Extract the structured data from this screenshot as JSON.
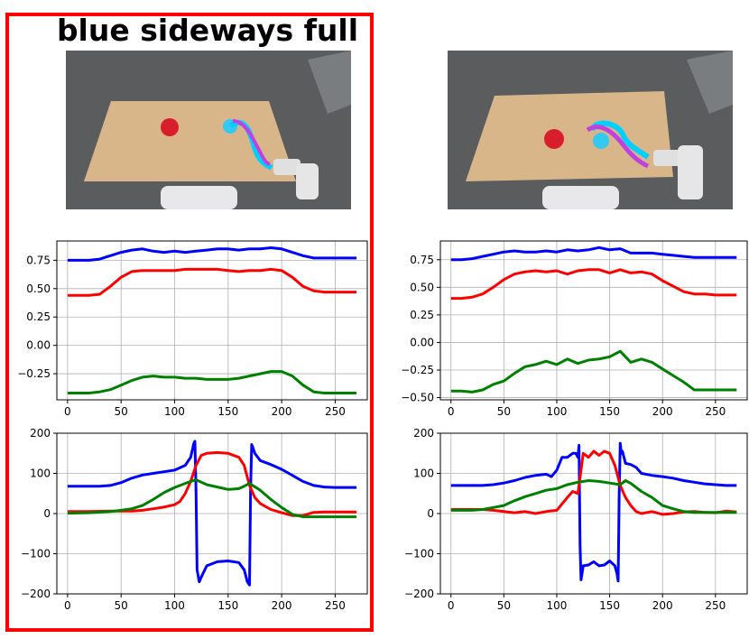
{
  "panel_title": "blue sideways full",
  "colors": {
    "frame": "#ff0000",
    "series_blue": "#0000ff",
    "series_red": "#ff0000",
    "series_green": "#008000",
    "grid": "#b0b0b0",
    "table": "#d9b58a",
    "floor": "#5a5c5e"
  },
  "photos": [
    {
      "name": "left",
      "description_icon": "robot-table-scene",
      "trace_color": "#00d0ff",
      "trace2_color": "#c040e0"
    },
    {
      "name": "right",
      "description_icon": "robot-table-scene",
      "trace_color": "#00d0ff",
      "trace2_color": "#c040e0"
    }
  ],
  "chart_data": [
    {
      "id": "top-left",
      "type": "line",
      "x": [
        0,
        10,
        20,
        30,
        40,
        50,
        60,
        70,
        80,
        90,
        100,
        110,
        120,
        130,
        140,
        150,
        160,
        170,
        180,
        190,
        200,
        210,
        220,
        230,
        240,
        250,
        260,
        270
      ],
      "xlim": [
        -10,
        280
      ],
      "ylim": [
        -0.48,
        0.92
      ],
      "xticks": [
        0,
        50,
        100,
        150,
        200,
        250
      ],
      "yticks": [
        -0.25,
        0,
        0.25,
        0.5,
        0.75
      ],
      "ytick_labels": [
        "−0.25",
        "0.00",
        "0.25",
        "0.50",
        "0.75"
      ],
      "series": [
        {
          "color": "#0000ff",
          "values": [
            0.75,
            0.75,
            0.75,
            0.76,
            0.79,
            0.82,
            0.84,
            0.85,
            0.83,
            0.82,
            0.83,
            0.82,
            0.83,
            0.84,
            0.85,
            0.85,
            0.84,
            0.85,
            0.85,
            0.86,
            0.85,
            0.82,
            0.79,
            0.77,
            0.77,
            0.77,
            0.77,
            0.77
          ]
        },
        {
          "color": "#ff0000",
          "values": [
            0.44,
            0.44,
            0.44,
            0.45,
            0.52,
            0.6,
            0.65,
            0.66,
            0.66,
            0.66,
            0.66,
            0.67,
            0.67,
            0.67,
            0.67,
            0.66,
            0.65,
            0.66,
            0.66,
            0.67,
            0.66,
            0.6,
            0.52,
            0.48,
            0.47,
            0.47,
            0.47,
            0.47
          ]
        },
        {
          "color": "#008000",
          "values": [
            -0.42,
            -0.42,
            -0.42,
            -0.41,
            -0.39,
            -0.35,
            -0.31,
            -0.28,
            -0.27,
            -0.28,
            -0.28,
            -0.29,
            -0.29,
            -0.3,
            -0.3,
            -0.3,
            -0.29,
            -0.27,
            -0.25,
            -0.23,
            -0.23,
            -0.27,
            -0.35,
            -0.41,
            -0.42,
            -0.42,
            -0.42,
            -0.42
          ]
        }
      ]
    },
    {
      "id": "top-right",
      "type": "line",
      "x": [
        0,
        10,
        20,
        30,
        40,
        50,
        60,
        70,
        80,
        90,
        100,
        110,
        120,
        130,
        140,
        150,
        160,
        170,
        180,
        190,
        200,
        210,
        220,
        230,
        240,
        250,
        260,
        270
      ],
      "xlim": [
        -10,
        280
      ],
      "ylim": [
        -0.52,
        0.92
      ],
      "xticks": [
        0,
        50,
        100,
        150,
        200,
        250
      ],
      "yticks": [
        -0.5,
        -0.25,
        0,
        0.25,
        0.5,
        0.75
      ],
      "ytick_labels": [
        "−0.50",
        "−0.25",
        "0.00",
        "0.25",
        "0.50",
        "0.75"
      ],
      "series": [
        {
          "color": "#0000ff",
          "values": [
            0.75,
            0.75,
            0.76,
            0.78,
            0.8,
            0.82,
            0.83,
            0.82,
            0.82,
            0.83,
            0.82,
            0.84,
            0.83,
            0.84,
            0.86,
            0.84,
            0.85,
            0.81,
            0.81,
            0.81,
            0.8,
            0.79,
            0.78,
            0.77,
            0.77,
            0.77,
            0.77,
            0.77
          ]
        },
        {
          "color": "#ff0000",
          "values": [
            0.4,
            0.4,
            0.41,
            0.44,
            0.5,
            0.57,
            0.62,
            0.64,
            0.65,
            0.64,
            0.65,
            0.62,
            0.65,
            0.66,
            0.66,
            0.63,
            0.66,
            0.63,
            0.64,
            0.62,
            0.56,
            0.51,
            0.46,
            0.44,
            0.44,
            0.43,
            0.43,
            0.43
          ]
        },
        {
          "color": "#008000",
          "values": [
            -0.44,
            -0.44,
            -0.45,
            -0.43,
            -0.38,
            -0.35,
            -0.28,
            -0.22,
            -0.2,
            -0.17,
            -0.2,
            -0.15,
            -0.19,
            -0.16,
            -0.15,
            -0.13,
            -0.08,
            -0.18,
            -0.15,
            -0.18,
            -0.24,
            -0.3,
            -0.36,
            -0.43,
            -0.43,
            -0.43,
            -0.43,
            -0.43
          ]
        }
      ]
    },
    {
      "id": "bottom-left",
      "type": "line",
      "xlim": [
        -10,
        280
      ],
      "ylim": [
        -200,
        200
      ],
      "xticks": [
        0,
        50,
        100,
        150,
        200,
        250
      ],
      "yticks": [
        -200,
        -100,
        0,
        100,
        200
      ],
      "ytick_labels": [
        "−200",
        "−100",
        "0",
        "100",
        "200"
      ],
      "series": [
        {
          "color": "#0000ff",
          "x": [
            0,
            20,
            30,
            40,
            50,
            60,
            70,
            80,
            90,
            100,
            110,
            115,
            118,
            119,
            120,
            121,
            123,
            125,
            130,
            140,
            150,
            160,
            165,
            168,
            170,
            171,
            172,
            173,
            175,
            180,
            190,
            200,
            210,
            220,
            230,
            240,
            250,
            260,
            270
          ],
          "values": [
            68,
            68,
            68,
            70,
            77,
            88,
            96,
            100,
            104,
            108,
            120,
            140,
            175,
            180,
            60,
            -140,
            -170,
            -158,
            -130,
            -120,
            -118,
            -122,
            -140,
            -170,
            -178,
            60,
            172,
            165,
            150,
            132,
            122,
            110,
            95,
            80,
            70,
            66,
            65,
            65,
            65
          ]
        },
        {
          "color": "#ff0000",
          "x": [
            0,
            20,
            40,
            60,
            70,
            80,
            90,
            100,
            105,
            110,
            115,
            120,
            125,
            130,
            140,
            150,
            160,
            165,
            170,
            175,
            180,
            190,
            200,
            210,
            220,
            230,
            240,
            250,
            270
          ],
          "values": [
            5,
            5,
            6,
            6,
            8,
            12,
            16,
            22,
            30,
            50,
            80,
            120,
            145,
            150,
            152,
            150,
            140,
            120,
            70,
            40,
            25,
            10,
            2,
            -5,
            -5,
            3,
            4,
            4,
            4
          ]
        },
        {
          "color": "#008000",
          "x": [
            0,
            20,
            40,
            50,
            60,
            70,
            80,
            90,
            100,
            110,
            115,
            120,
            125,
            130,
            140,
            150,
            160,
            165,
            170,
            180,
            190,
            200,
            210,
            220,
            240,
            270
          ],
          "values": [
            1,
            2,
            5,
            8,
            12,
            20,
            35,
            52,
            65,
            75,
            80,
            84,
            78,
            72,
            66,
            60,
            62,
            68,
            75,
            58,
            35,
            15,
            -2,
            -8,
            -8,
            -8
          ]
        }
      ]
    },
    {
      "id": "bottom-right",
      "type": "line",
      "xlim": [
        -10,
        280
      ],
      "ylim": [
        -200,
        200
      ],
      "xticks": [
        0,
        50,
        100,
        150,
        200,
        250
      ],
      "yticks": [
        -200,
        -100,
        0,
        100,
        200
      ],
      "ytick_labels": [
        "−200",
        "−100",
        "0",
        "100",
        "200"
      ],
      "series": [
        {
          "color": "#0000ff",
          "x": [
            0,
            20,
            30,
            40,
            50,
            60,
            70,
            80,
            90,
            95,
            100,
            105,
            110,
            115,
            118,
            120,
            121,
            122,
            123,
            125,
            130,
            135,
            140,
            145,
            150,
            155,
            157,
            158,
            159,
            160,
            161,
            162,
            165,
            170,
            175,
            180,
            190,
            200,
            210,
            220,
            230,
            240,
            250,
            260,
            270
          ],
          "values": [
            70,
            70,
            70,
            72,
            76,
            82,
            90,
            95,
            98,
            92,
            108,
            140,
            140,
            150,
            150,
            140,
            170,
            -80,
            -165,
            -130,
            -128,
            -120,
            -130,
            -128,
            -118,
            -130,
            -150,
            -168,
            40,
            175,
            150,
            155,
            125,
            122,
            115,
            100,
            95,
            92,
            88,
            82,
            78,
            74,
            72,
            70,
            70
          ]
        },
        {
          "color": "#ff0000",
          "x": [
            0,
            20,
            30,
            40,
            50,
            60,
            70,
            80,
            90,
            100,
            110,
            115,
            120,
            125,
            130,
            135,
            140,
            145,
            150,
            155,
            160,
            165,
            170,
            175,
            180,
            190,
            200,
            210,
            220,
            230,
            240,
            250,
            260,
            270
          ],
          "values": [
            10,
            10,
            10,
            8,
            5,
            2,
            5,
            0,
            5,
            8,
            40,
            55,
            50,
            150,
            140,
            155,
            145,
            155,
            150,
            120,
            70,
            40,
            20,
            5,
            0,
            5,
            -2,
            0,
            4,
            5,
            3,
            2,
            6,
            4
          ]
        },
        {
          "color": "#008000",
          "x": [
            0,
            20,
            30,
            40,
            50,
            60,
            70,
            80,
            90,
            100,
            110,
            120,
            130,
            140,
            150,
            160,
            165,
            170,
            180,
            190,
            200,
            210,
            220,
            230,
            240,
            250,
            260,
            270
          ],
          "values": [
            8,
            8,
            10,
            15,
            20,
            32,
            42,
            50,
            58,
            62,
            72,
            78,
            82,
            80,
            76,
            72,
            82,
            75,
            55,
            40,
            20,
            12,
            5,
            3,
            3,
            3,
            3,
            3
          ]
        }
      ]
    }
  ]
}
